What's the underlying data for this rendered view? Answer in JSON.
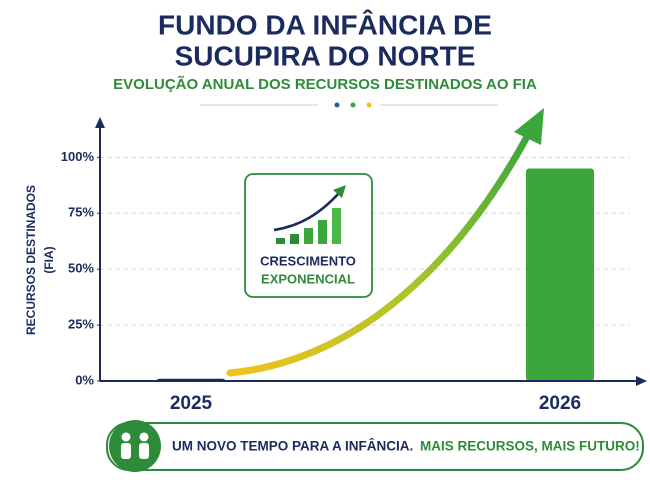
{
  "chart_data": {
    "type": "bar",
    "title": [
      "FUNDO DA INFÂNCIA DE",
      "SUCUPIRA DO NORTE"
    ],
    "subtitle": "EVOLUÇÃO ANUAL DOS RECURSOS DESTINADOS AO FIA",
    "y_label": [
      "RECURSOS DESTINADOS",
      "(FIA)"
    ],
    "categories": [
      "2025",
      "2026"
    ],
    "values": [
      1,
      95
    ],
    "colors": [
      "#1b2b5e",
      "#3aa63c"
    ],
    "ylim": [
      0,
      110
    ],
    "yticks": [
      {
        "value": 0,
        "label": "0%"
      },
      {
        "value": 25,
        "label": "25%"
      },
      {
        "value": 50,
        "label": "50%"
      },
      {
        "value": 75,
        "label": "75%"
      },
      {
        "value": 100,
        "label": "100%"
      }
    ],
    "grid": true,
    "annotation": [
      "CRESCIMENTO",
      "EXPONENCIAL"
    ],
    "banner": [
      "UM NOVO TEMPO PARA A INFÂNCIA.",
      "MAIS RECURSOS, MAIS FUTURO!"
    ]
  }
}
